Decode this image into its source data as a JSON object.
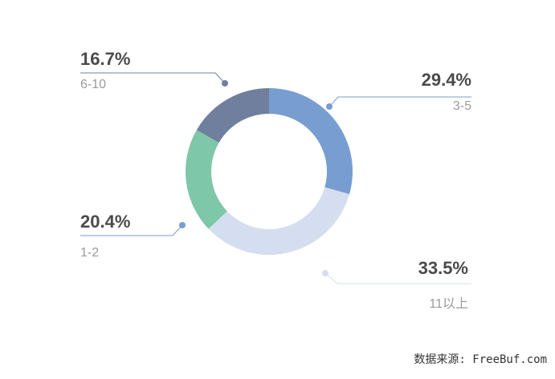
{
  "chart_data": {
    "type": "pie",
    "categories": [
      "3-5",
      "11以上",
      "1-2",
      "6-10"
    ],
    "values": [
      29.4,
      33.5,
      20.4,
      16.7
    ],
    "labels": [
      "29.4%",
      "33.5%",
      "20.4%",
      "16.7%"
    ],
    "colors": [
      "#789dd0",
      "#d4def0",
      "#7ec7a8",
      "#717f9e"
    ],
    "donut": true,
    "start_angle_deg": 0,
    "direction": "clockwise"
  },
  "source_text": "数据来源: FreeBuf.com"
}
